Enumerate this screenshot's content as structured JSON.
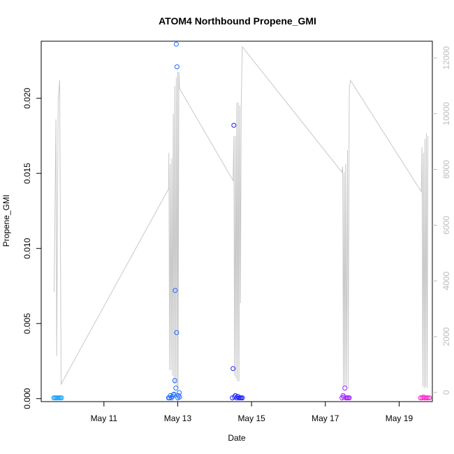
{
  "chart_data": {
    "type": "scatter",
    "title": "ATOM4 Northbound Propene_GMI",
    "xlabel": "Date",
    "ylabel": "Propene_GMI",
    "x_ticks": [
      {
        "day": 11,
        "label": "May 11"
      },
      {
        "day": 13,
        "label": "May 13"
      },
      {
        "day": 15,
        "label": "May 15"
      },
      {
        "day": 17,
        "label": "May 17"
      },
      {
        "day": 19,
        "label": "May 19"
      }
    ],
    "xlim": [
      9.3,
      19.9
    ],
    "y_left": {
      "lim": [
        -0.0002,
        0.0238
      ],
      "ticks": [
        0.0,
        0.005,
        0.01,
        0.015,
        0.02
      ],
      "labels": [
        "0.000",
        "0.005",
        "0.010",
        "0.015",
        "0.020"
      ]
    },
    "y_right": {
      "lim": [
        -330,
        12600
      ],
      "ticks": [
        0,
        2000,
        4000,
        6000,
        8000,
        10000,
        12000
      ],
      "labels": [
        "0",
        "2000",
        "4000",
        "6000",
        "8000",
        "10000",
        "12000"
      ],
      "color": "#bdbdbd"
    },
    "colors": {
      "line": "#c8c8c8",
      "flight1": "#1ea6ff",
      "flight2": "#1e6bff",
      "flight3": "#1e1eff",
      "flight4": "#a01eff",
      "flight5": "#ff1ec8"
    },
    "altitude_series": [
      [
        9.65,
        3600
      ],
      [
        9.7,
        9800
      ],
      [
        9.72,
        1300
      ],
      [
        9.76,
        10500
      ],
      [
        9.8,
        11200
      ],
      [
        9.84,
        300
      ],
      [
        12.75,
        7300
      ],
      [
        12.76,
        8600
      ],
      [
        12.78,
        800
      ],
      [
        12.8,
        8200
      ],
      [
        12.82,
        800
      ],
      [
        12.84,
        8400
      ],
      [
        12.86,
        600
      ],
      [
        12.88,
        10000
      ],
      [
        12.9,
        300
      ],
      [
        12.92,
        11000
      ],
      [
        12.94,
        300
      ],
      [
        12.96,
        11300
      ],
      [
        12.98,
        200
      ],
      [
        13.0,
        11500
      ],
      [
        13.01,
        150
      ],
      [
        13.03,
        11500
      ],
      [
        13.05,
        10900
      ],
      [
        14.5,
        7600
      ],
      [
        14.52,
        9200
      ],
      [
        14.54,
        600
      ],
      [
        14.56,
        9200
      ],
      [
        14.58,
        500
      ],
      [
        14.6,
        10400
      ],
      [
        14.62,
        400
      ],
      [
        14.64,
        10400
      ],
      [
        14.66,
        400
      ],
      [
        14.68,
        10300
      ],
      [
        14.7,
        3200
      ],
      [
        14.72,
        10200
      ],
      [
        14.75,
        12400
      ],
      [
        17.45,
        7900
      ],
      [
        17.47,
        8100
      ],
      [
        17.49,
        200
      ],
      [
        17.51,
        7900
      ],
      [
        17.53,
        200
      ],
      [
        17.55,
        8200
      ],
      [
        17.57,
        200
      ],
      [
        17.6,
        8700
      ],
      [
        17.62,
        150
      ],
      [
        17.65,
        10900
      ],
      [
        17.68,
        11200
      ],
      [
        19.6,
        7200
      ],
      [
        19.62,
        8800
      ],
      [
        19.64,
        200
      ],
      [
        19.66,
        8600
      ],
      [
        19.68,
        150
      ],
      [
        19.7,
        9100
      ],
      [
        19.72,
        200
      ],
      [
        19.74,
        9300
      ],
      [
        19.76,
        150
      ],
      [
        19.78,
        9200
      ]
    ],
    "series": [
      {
        "key": "flight1",
        "points": [
          [
            9.64,
            5e-05
          ],
          [
            9.67,
            5e-05
          ],
          [
            9.7,
            5e-05
          ],
          [
            9.73,
            5e-05
          ],
          [
            9.76,
            5e-05
          ],
          [
            9.79,
            5e-05
          ],
          [
            9.82,
            5e-05
          ],
          [
            9.85,
            5e-05
          ]
        ]
      },
      {
        "key": "flight2",
        "points": [
          [
            12.75,
            5e-05
          ],
          [
            12.78,
            5e-05
          ],
          [
            12.8,
            0.0002
          ],
          [
            12.83,
            5e-05
          ],
          [
            12.86,
            0.00015
          ],
          [
            12.88,
            0.00025
          ],
          [
            12.9,
            0.0003
          ],
          [
            12.92,
            0.0012
          ],
          [
            12.93,
            0.0072
          ],
          [
            12.95,
            0.0007
          ],
          [
            12.96,
            0.0236
          ],
          [
            12.97,
            0.0044
          ],
          [
            12.98,
            0.0221
          ],
          [
            13.0,
            5e-05
          ],
          [
            13.02,
            0.0002
          ],
          [
            13.04,
            0.0004
          ],
          [
            13.05,
            0.0001
          ]
        ]
      },
      {
        "key": "flight3",
        "points": [
          [
            14.48,
            5e-05
          ],
          [
            14.5,
            0.002
          ],
          [
            14.52,
            0.0182
          ],
          [
            14.54,
            0.0001
          ],
          [
            14.56,
            0.0002
          ],
          [
            14.6,
            5e-05
          ],
          [
            14.63,
            0.00015
          ],
          [
            14.66,
            5e-05
          ],
          [
            14.69,
            5e-05
          ],
          [
            14.72,
            5e-05
          ],
          [
            14.75,
            5e-05
          ]
        ]
      },
      {
        "key": "flight4",
        "points": [
          [
            17.45,
            5e-05
          ],
          [
            17.48,
            0.0002
          ],
          [
            17.5,
            0.0001
          ],
          [
            17.53,
            0.0007
          ],
          [
            17.56,
            5e-05
          ],
          [
            17.59,
            5e-05
          ],
          [
            17.62,
            5e-05
          ],
          [
            17.65,
            5e-05
          ]
        ]
      },
      {
        "key": "flight5",
        "points": [
          [
            19.58,
            5e-05
          ],
          [
            19.62,
            5e-05
          ],
          [
            19.66,
            0.0001
          ],
          [
            19.7,
            5e-05
          ],
          [
            19.74,
            5e-05
          ],
          [
            19.78,
            5e-05
          ],
          [
            19.82,
            5e-05
          ]
        ]
      }
    ]
  }
}
